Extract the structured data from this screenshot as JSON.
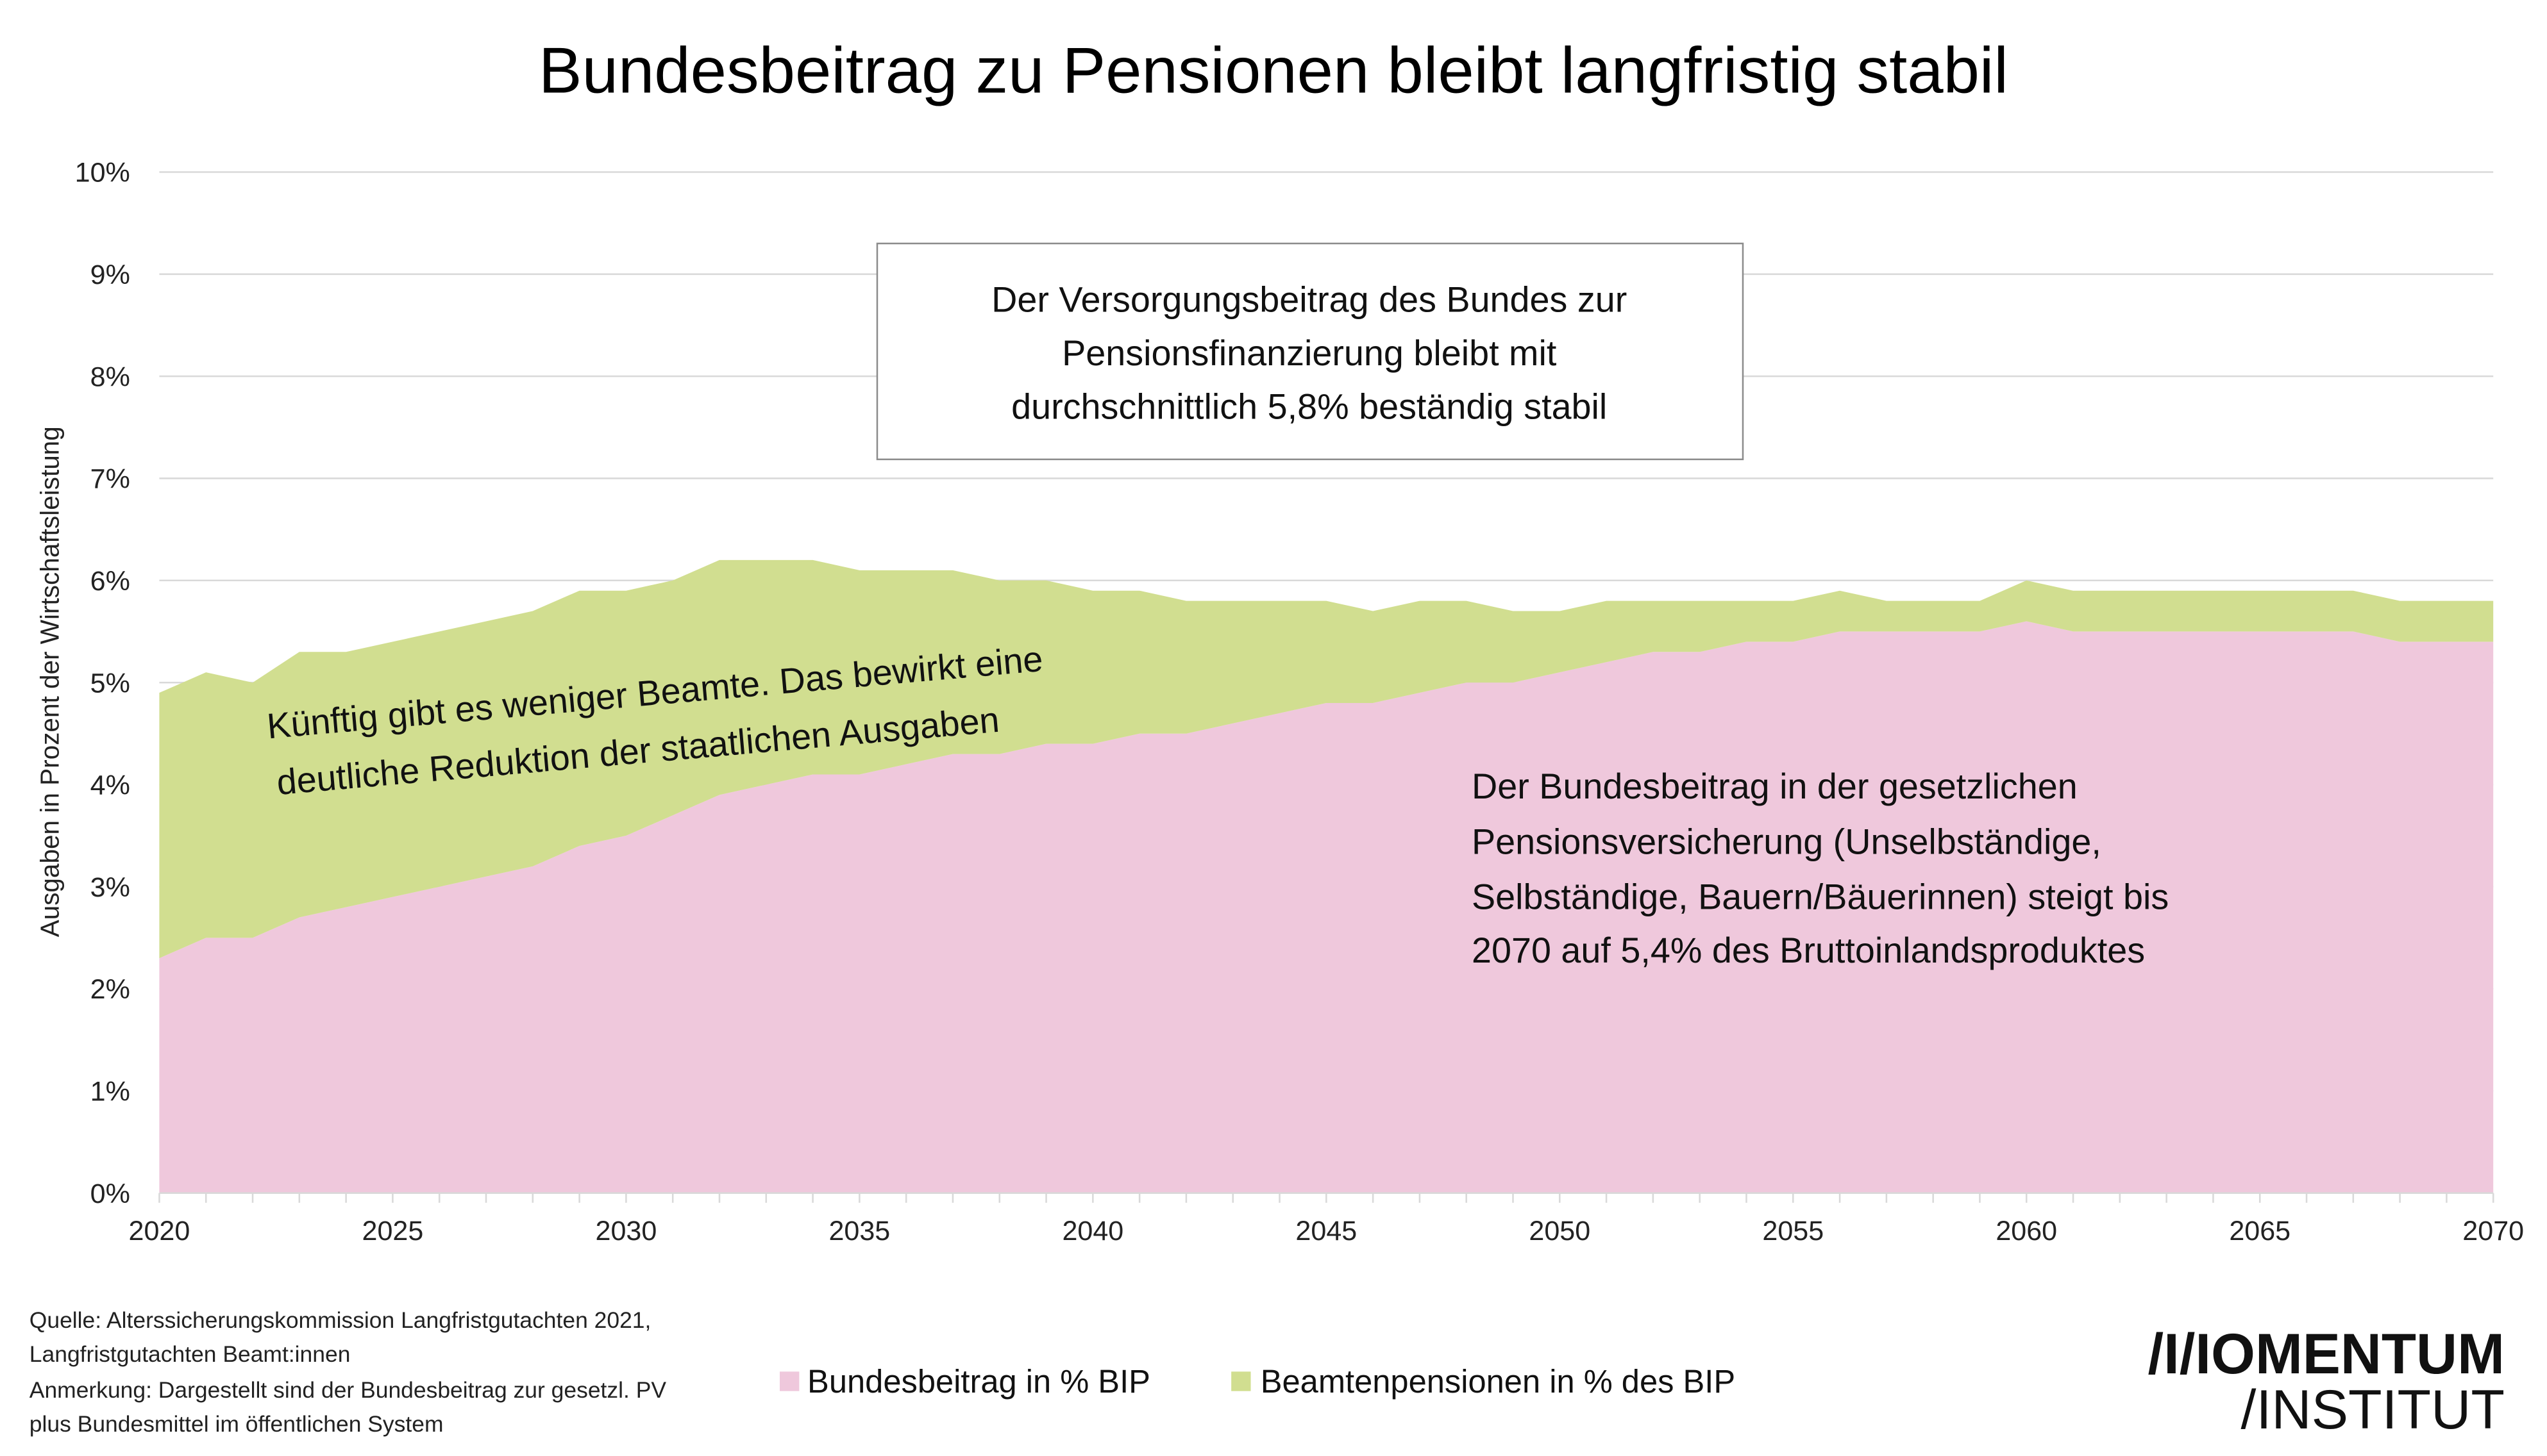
{
  "title": "Bundesbeitrag zu Pensionen bleibt langfristig stabil",
  "annotations": {
    "box_lines": [
      "Der Versorgungsbeitrag des Bundes zur",
      "Pensionsfinanzierung bleibt mit",
      "durchschnittlich 5,8% beständig stabil"
    ],
    "green_lines": [
      "Künftig gibt es weniger Beamte. Das bewirkt eine",
      "deutliche Reduktion der staatlichen Ausgaben"
    ],
    "pink_lines": [
      "Der Bundesbeitrag in der gesetzlichen",
      "Pensionsversicherung (Unselbständige,",
      "Selbständige, Bauern/Bäuerinnen) steigt bis",
      "2070 auf 5,4% des Bruttoinlandsproduktes"
    ]
  },
  "footer": {
    "source_lines": [
      "Quelle: Alterssicherungskommission Langfristgutachten 2021,",
      "Langfristgutachten Beamt:innen",
      "Anmerkung: Dargestellt sind der Bundesbeitrag zur gesetzl. PV",
      "plus Bundesmittel im öffentlichen System"
    ],
    "logo_line1": "/I/IOMENTUM",
    "logo_line2": "/INSTITUT"
  },
  "chart_data": {
    "type": "area",
    "stacked": true,
    "title": "Bundesbeitrag zu Pensionen bleibt langfristig stabil",
    "xlabel": "",
    "ylabel": "Ausgaben in Prozent der Wirtschaftsleistung",
    "ylim": [
      0,
      10
    ],
    "xlim": [
      2020,
      2070
    ],
    "grid": true,
    "legend_position": "bottom",
    "yticks": [
      "0%",
      "1%",
      "2%",
      "3%",
      "4%",
      "5%",
      "6%",
      "7%",
      "8%",
      "9%",
      "10%"
    ],
    "xticks": [
      "2020",
      "2025",
      "2030",
      "2035",
      "2040",
      "2045",
      "2050",
      "2055",
      "2060",
      "2065",
      "2070"
    ],
    "x": [
      2020,
      2021,
      2022,
      2023,
      2024,
      2025,
      2026,
      2027,
      2028,
      2029,
      2030,
      2031,
      2032,
      2033,
      2034,
      2035,
      2036,
      2037,
      2038,
      2039,
      2040,
      2041,
      2042,
      2043,
      2044,
      2045,
      2046,
      2047,
      2048,
      2049,
      2050,
      2051,
      2052,
      2053,
      2054,
      2055,
      2056,
      2057,
      2058,
      2059,
      2060,
      2061,
      2062,
      2063,
      2064,
      2065,
      2066,
      2067,
      2068,
      2069,
      2070
    ],
    "series": [
      {
        "name": "Bundesbeitrag in % BIP",
        "color": "#efc8dc",
        "values": [
          2.3,
          2.5,
          2.5,
          2.7,
          2.8,
          2.9,
          3.0,
          3.1,
          3.2,
          3.4,
          3.5,
          3.7,
          3.9,
          4.0,
          4.1,
          4.1,
          4.2,
          4.3,
          4.3,
          4.4,
          4.4,
          4.5,
          4.5,
          4.6,
          4.7,
          4.8,
          4.8,
          4.9,
          5.0,
          5.0,
          5.1,
          5.2,
          5.3,
          5.3,
          5.4,
          5.4,
          5.5,
          5.5,
          5.5,
          5.5,
          5.6,
          5.5,
          5.5,
          5.5,
          5.5,
          5.5,
          5.5,
          5.5,
          5.4,
          5.4,
          5.4
        ]
      },
      {
        "name": "Beamtenpensionen in % des BIP",
        "color": "#d1de90",
        "values": [
          2.6,
          2.6,
          2.5,
          2.6,
          2.5,
          2.5,
          2.5,
          2.5,
          2.5,
          2.5,
          2.4,
          2.3,
          2.3,
          2.2,
          2.1,
          2.0,
          1.9,
          1.8,
          1.7,
          1.6,
          1.5,
          1.4,
          1.3,
          1.2,
          1.1,
          1.0,
          0.9,
          0.9,
          0.8,
          0.7,
          0.6,
          0.6,
          0.5,
          0.5,
          0.4,
          0.4,
          0.4,
          0.3,
          0.3,
          0.3,
          0.4,
          0.4,
          0.4,
          0.4,
          0.4,
          0.4,
          0.4,
          0.4,
          0.4,
          0.4,
          0.4
        ]
      }
    ]
  }
}
